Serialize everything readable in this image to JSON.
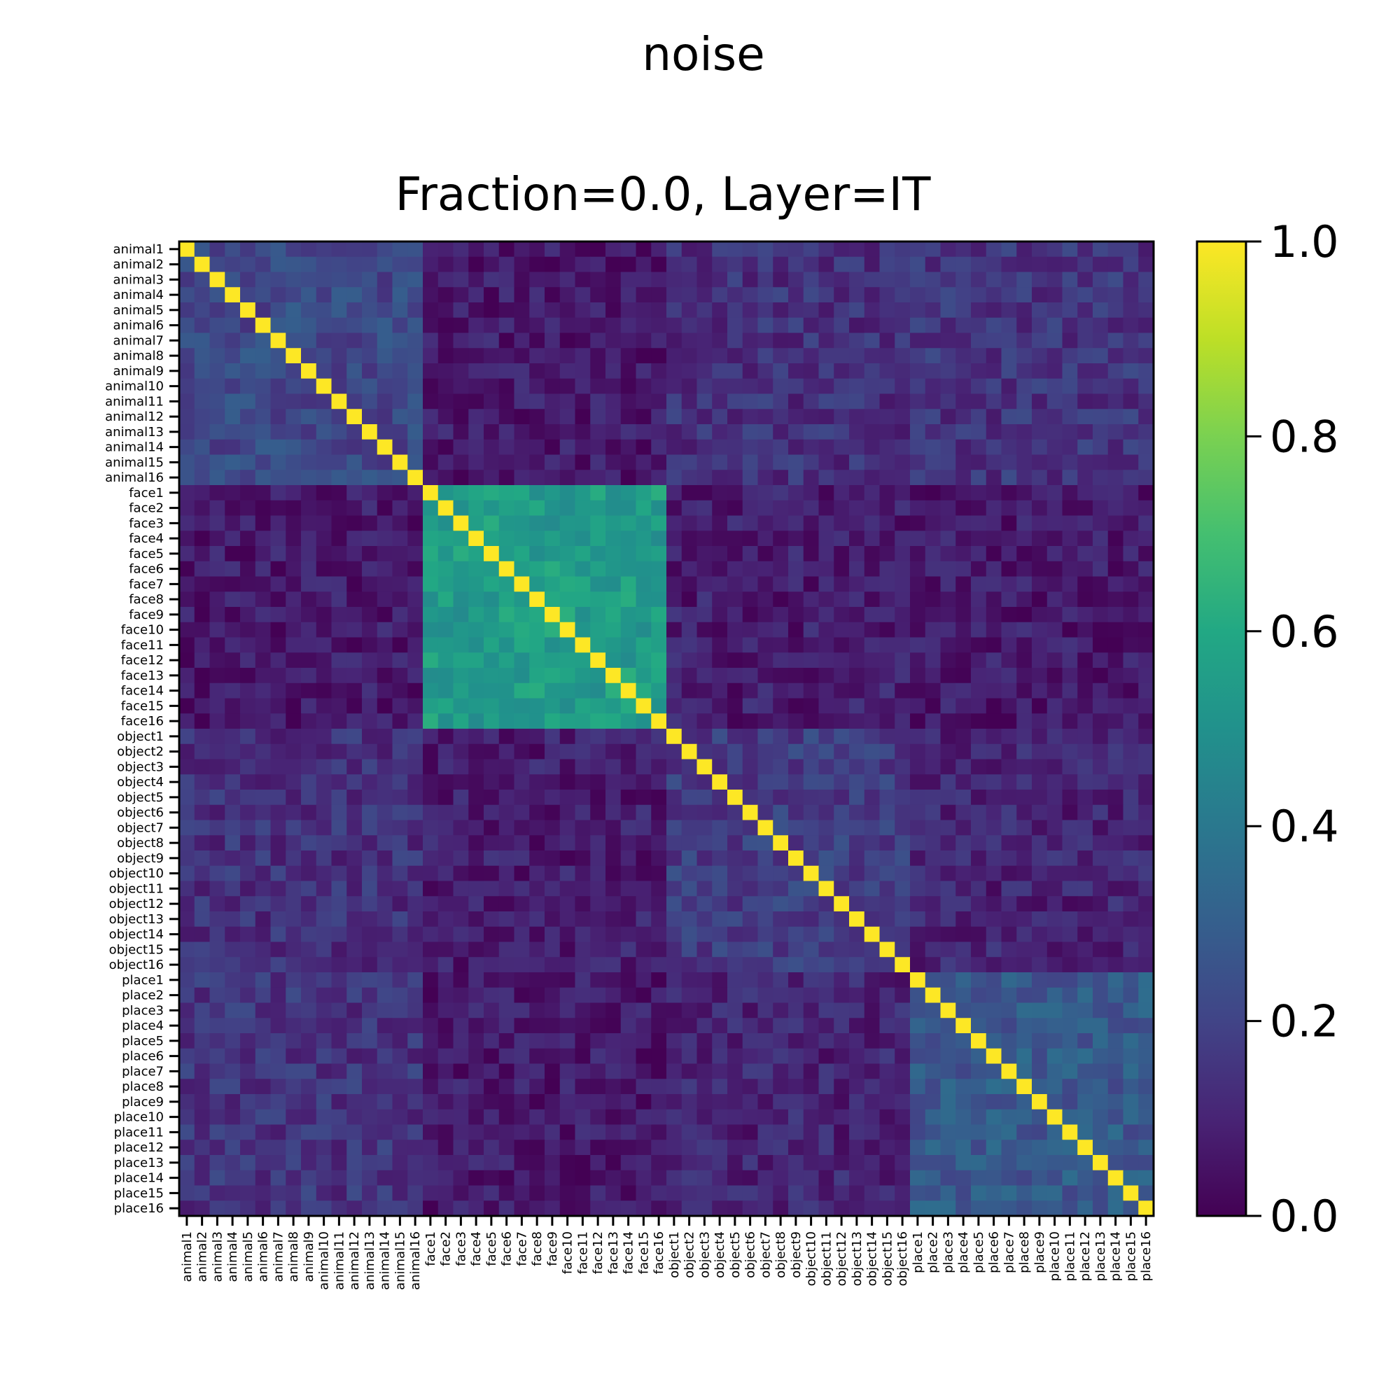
{
  "suptitle": "noise",
  "chart_data": {
    "type": "heatmap",
    "title": "Fraction=0.0, Layer=IT",
    "xlabel": "",
    "ylabel": "",
    "labels": [
      "animal1",
      "animal2",
      "animal3",
      "animal4",
      "animal5",
      "animal6",
      "animal7",
      "animal8",
      "animal9",
      "animal10",
      "animal11",
      "animal12",
      "animal13",
      "animal14",
      "animal15",
      "animal16",
      "face1",
      "face2",
      "face3",
      "face4",
      "face5",
      "face6",
      "face7",
      "face8",
      "face9",
      "face10",
      "face11",
      "face12",
      "face13",
      "face14",
      "face15",
      "face16",
      "object1",
      "object2",
      "object3",
      "object4",
      "object5",
      "object6",
      "object7",
      "object8",
      "object9",
      "object10",
      "object11",
      "object12",
      "object13",
      "object14",
      "object15",
      "object16",
      "place1",
      "place2",
      "place3",
      "place4",
      "place5",
      "place6",
      "place7",
      "place8",
      "place9",
      "place10",
      "place11",
      "place12",
      "place13",
      "place14",
      "place15",
      "place16"
    ],
    "colorbar": {
      "min": 0.0,
      "max": 1.0,
      "ticks": [
        "0.0",
        "0.2",
        "0.4",
        "0.6",
        "0.8",
        "1.0"
      ],
      "colormap": "viridis"
    },
    "block_means": {
      "categories": [
        "animal",
        "face",
        "object",
        "place"
      ],
      "diagonal": 1.0,
      "within": {
        "animal": 0.22,
        "face": 0.55,
        "object": 0.18,
        "place": 0.28
      },
      "between": {
        "animal-face": 0.07,
        "animal-object": 0.14,
        "animal-place": 0.15,
        "face-object": 0.08,
        "face-place": 0.07,
        "object-place": 0.1
      }
    }
  }
}
